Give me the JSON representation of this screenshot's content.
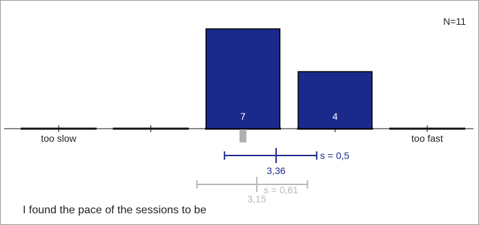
{
  "question": "I found the pace of the sessions to be",
  "chart_data": {
    "type": "bar",
    "n_label": "N=11",
    "categories": [
      "1",
      "2",
      "3",
      "4",
      "5"
    ],
    "values": [
      0,
      0,
      7,
      4,
      0
    ],
    "bar_labels": [
      "",
      "",
      "7",
      "4",
      ""
    ],
    "scale_left_label": "too slow",
    "scale_right_label": "too fast",
    "ylim": [
      0,
      7
    ],
    "current": {
      "mean": 3.36,
      "mean_label": "3,36",
      "sd_label": "s = 0,5",
      "range": [
        2.8,
        3.8
      ],
      "color": "#1a2a8c"
    },
    "comparison": {
      "mean": 3.15,
      "mean_label": "3,15",
      "sd_label": "s = 0,61",
      "range": [
        2.5,
        3.7
      ],
      "color": "#b8b8b8"
    },
    "median_marker": 3,
    "colors": {
      "bar": "#1a2a8c",
      "baseline": "#111111",
      "marker": "#b0b0b0"
    }
  }
}
